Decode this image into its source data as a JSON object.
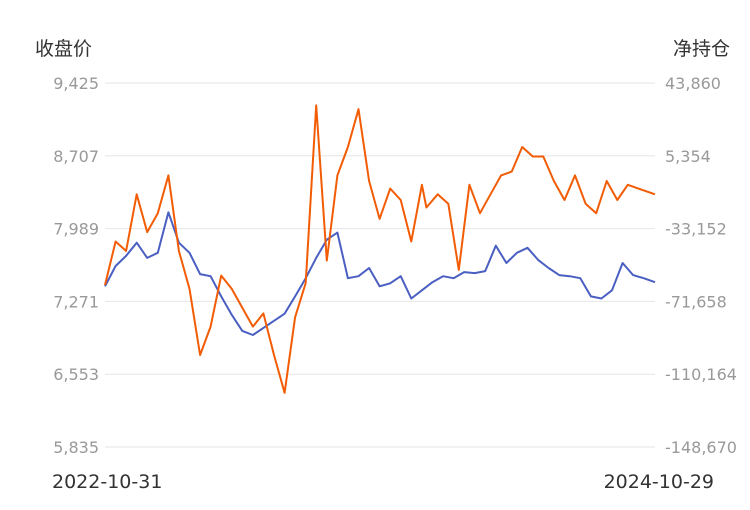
{
  "chart_data": {
    "type": "line",
    "left_axis_title": "收盘价",
    "right_axis_title": "净持仓",
    "left_ticks": [
      "9,425",
      "8,707",
      "7,989",
      "7,271",
      "6,553",
      "5,835"
    ],
    "right_ticks": [
      "43,860",
      "5,354",
      "-33,152",
      "-71,658",
      "-110,164",
      "-148,670"
    ],
    "left_range": [
      5835,
      9425
    ],
    "right_range": [
      -148670,
      43860
    ],
    "x_start_label": "2022-10-31",
    "x_end_label": "2024-10-29",
    "x_range": [
      "2022-10-31",
      "2024-10-29"
    ],
    "grid": true,
    "series": [
      {
        "axis": "left",
        "color": "#4a5fc1",
        "points": [
          [
            "2022-10-31",
            7420
          ],
          [
            "2022-11-14",
            7620
          ],
          [
            "2022-11-28",
            7720
          ],
          [
            "2022-12-12",
            7850
          ],
          [
            "2022-12-26",
            7700
          ],
          [
            "2023-01-09",
            7750
          ],
          [
            "2023-01-23",
            8150
          ],
          [
            "2023-02-06",
            7850
          ],
          [
            "2023-02-20",
            7750
          ],
          [
            "2023-03-06",
            7540
          ],
          [
            "2023-03-20",
            7520
          ],
          [
            "2023-04-03",
            7320
          ],
          [
            "2023-04-17",
            7140
          ],
          [
            "2023-05-01",
            6980
          ],
          [
            "2023-05-15",
            6940
          ],
          [
            "2023-05-29",
            7010
          ],
          [
            "2023-06-12",
            7080
          ],
          [
            "2023-06-26",
            7150
          ],
          [
            "2023-07-10",
            7320
          ],
          [
            "2023-07-24",
            7500
          ],
          [
            "2023-08-07",
            7700
          ],
          [
            "2023-08-21",
            7880
          ],
          [
            "2023-09-04",
            7950
          ],
          [
            "2023-09-18",
            7500
          ],
          [
            "2023-10-02",
            7520
          ],
          [
            "2023-10-16",
            7600
          ],
          [
            "2023-10-30",
            7420
          ],
          [
            "2023-11-13",
            7450
          ],
          [
            "2023-11-27",
            7520
          ],
          [
            "2023-12-11",
            7300
          ],
          [
            "2023-12-25",
            7380
          ],
          [
            "2024-01-08",
            7460
          ],
          [
            "2024-01-22",
            7520
          ],
          [
            "2024-02-05",
            7500
          ],
          [
            "2024-02-19",
            7560
          ],
          [
            "2024-03-04",
            7550
          ],
          [
            "2024-03-18",
            7570
          ],
          [
            "2024-04-01",
            7820
          ],
          [
            "2024-04-15",
            7650
          ],
          [
            "2024-04-29",
            7750
          ],
          [
            "2024-05-13",
            7800
          ],
          [
            "2024-05-27",
            7680
          ],
          [
            "2024-06-10",
            7600
          ],
          [
            "2024-06-24",
            7530
          ],
          [
            "2024-07-08",
            7520
          ],
          [
            "2024-07-22",
            7500
          ],
          [
            "2024-08-05",
            7320
          ],
          [
            "2024-08-19",
            7300
          ],
          [
            "2024-09-02",
            7380
          ],
          [
            "2024-09-16",
            7650
          ],
          [
            "2024-09-30",
            7530
          ],
          [
            "2024-10-14",
            7500
          ],
          [
            "2024-10-29",
            7460
          ]
        ]
      },
      {
        "axis": "right",
        "color": "#f25c05",
        "points": [
          [
            "2022-10-31",
            -63000
          ],
          [
            "2022-11-14",
            -40000
          ],
          [
            "2022-11-28",
            -45000
          ],
          [
            "2022-12-12",
            -15000
          ],
          [
            "2022-12-26",
            -35000
          ],
          [
            "2023-01-09",
            -25000
          ],
          [
            "2023-01-23",
            -5000
          ],
          [
            "2023-02-06",
            -45000
          ],
          [
            "2023-02-20",
            -65000
          ],
          [
            "2023-03-06",
            -100000
          ],
          [
            "2023-03-20",
            -85000
          ],
          [
            "2023-04-03",
            -58000
          ],
          [
            "2023-04-17",
            -65000
          ],
          [
            "2023-05-01",
            -75000
          ],
          [
            "2023-05-15",
            -85000
          ],
          [
            "2023-05-29",
            -78000
          ],
          [
            "2023-06-12",
            -100000
          ],
          [
            "2023-06-26",
            -120000
          ],
          [
            "2023-07-10",
            -80000
          ],
          [
            "2023-07-24",
            -62000
          ],
          [
            "2023-08-07",
            32000
          ],
          [
            "2023-08-21",
            -50000
          ],
          [
            "2023-09-04",
            -5000
          ],
          [
            "2023-09-18",
            10000
          ],
          [
            "2023-10-02",
            30000
          ],
          [
            "2023-10-16",
            -8000
          ],
          [
            "2023-10-30",
            -28000
          ],
          [
            "2023-11-13",
            -12000
          ],
          [
            "2023-11-27",
            -18000
          ],
          [
            "2023-12-11",
            -40000
          ],
          [
            "2023-12-25",
            -10000
          ],
          [
            "2023-12-31",
            -22000
          ],
          [
            "2024-01-15",
            -15000
          ],
          [
            "2024-01-29",
            -20000
          ],
          [
            "2024-02-12",
            -55000
          ],
          [
            "2024-02-26",
            -10000
          ],
          [
            "2024-03-11",
            -25000
          ],
          [
            "2024-03-25",
            -15000
          ],
          [
            "2024-04-08",
            -5000
          ],
          [
            "2024-04-22",
            -3000
          ],
          [
            "2024-05-06",
            10000
          ],
          [
            "2024-05-20",
            5000
          ],
          [
            "2024-06-03",
            5000
          ],
          [
            "2024-06-17",
            -8000
          ],
          [
            "2024-07-01",
            -18000
          ],
          [
            "2024-07-15",
            -5000
          ],
          [
            "2024-07-29",
            -20000
          ],
          [
            "2024-08-12",
            -25000
          ],
          [
            "2024-08-26",
            -8000
          ],
          [
            "2024-09-09",
            -18000
          ],
          [
            "2024-09-23",
            -10000
          ],
          [
            "2024-10-07",
            -12000
          ],
          [
            "2024-10-29",
            -15000
          ]
        ]
      }
    ]
  }
}
